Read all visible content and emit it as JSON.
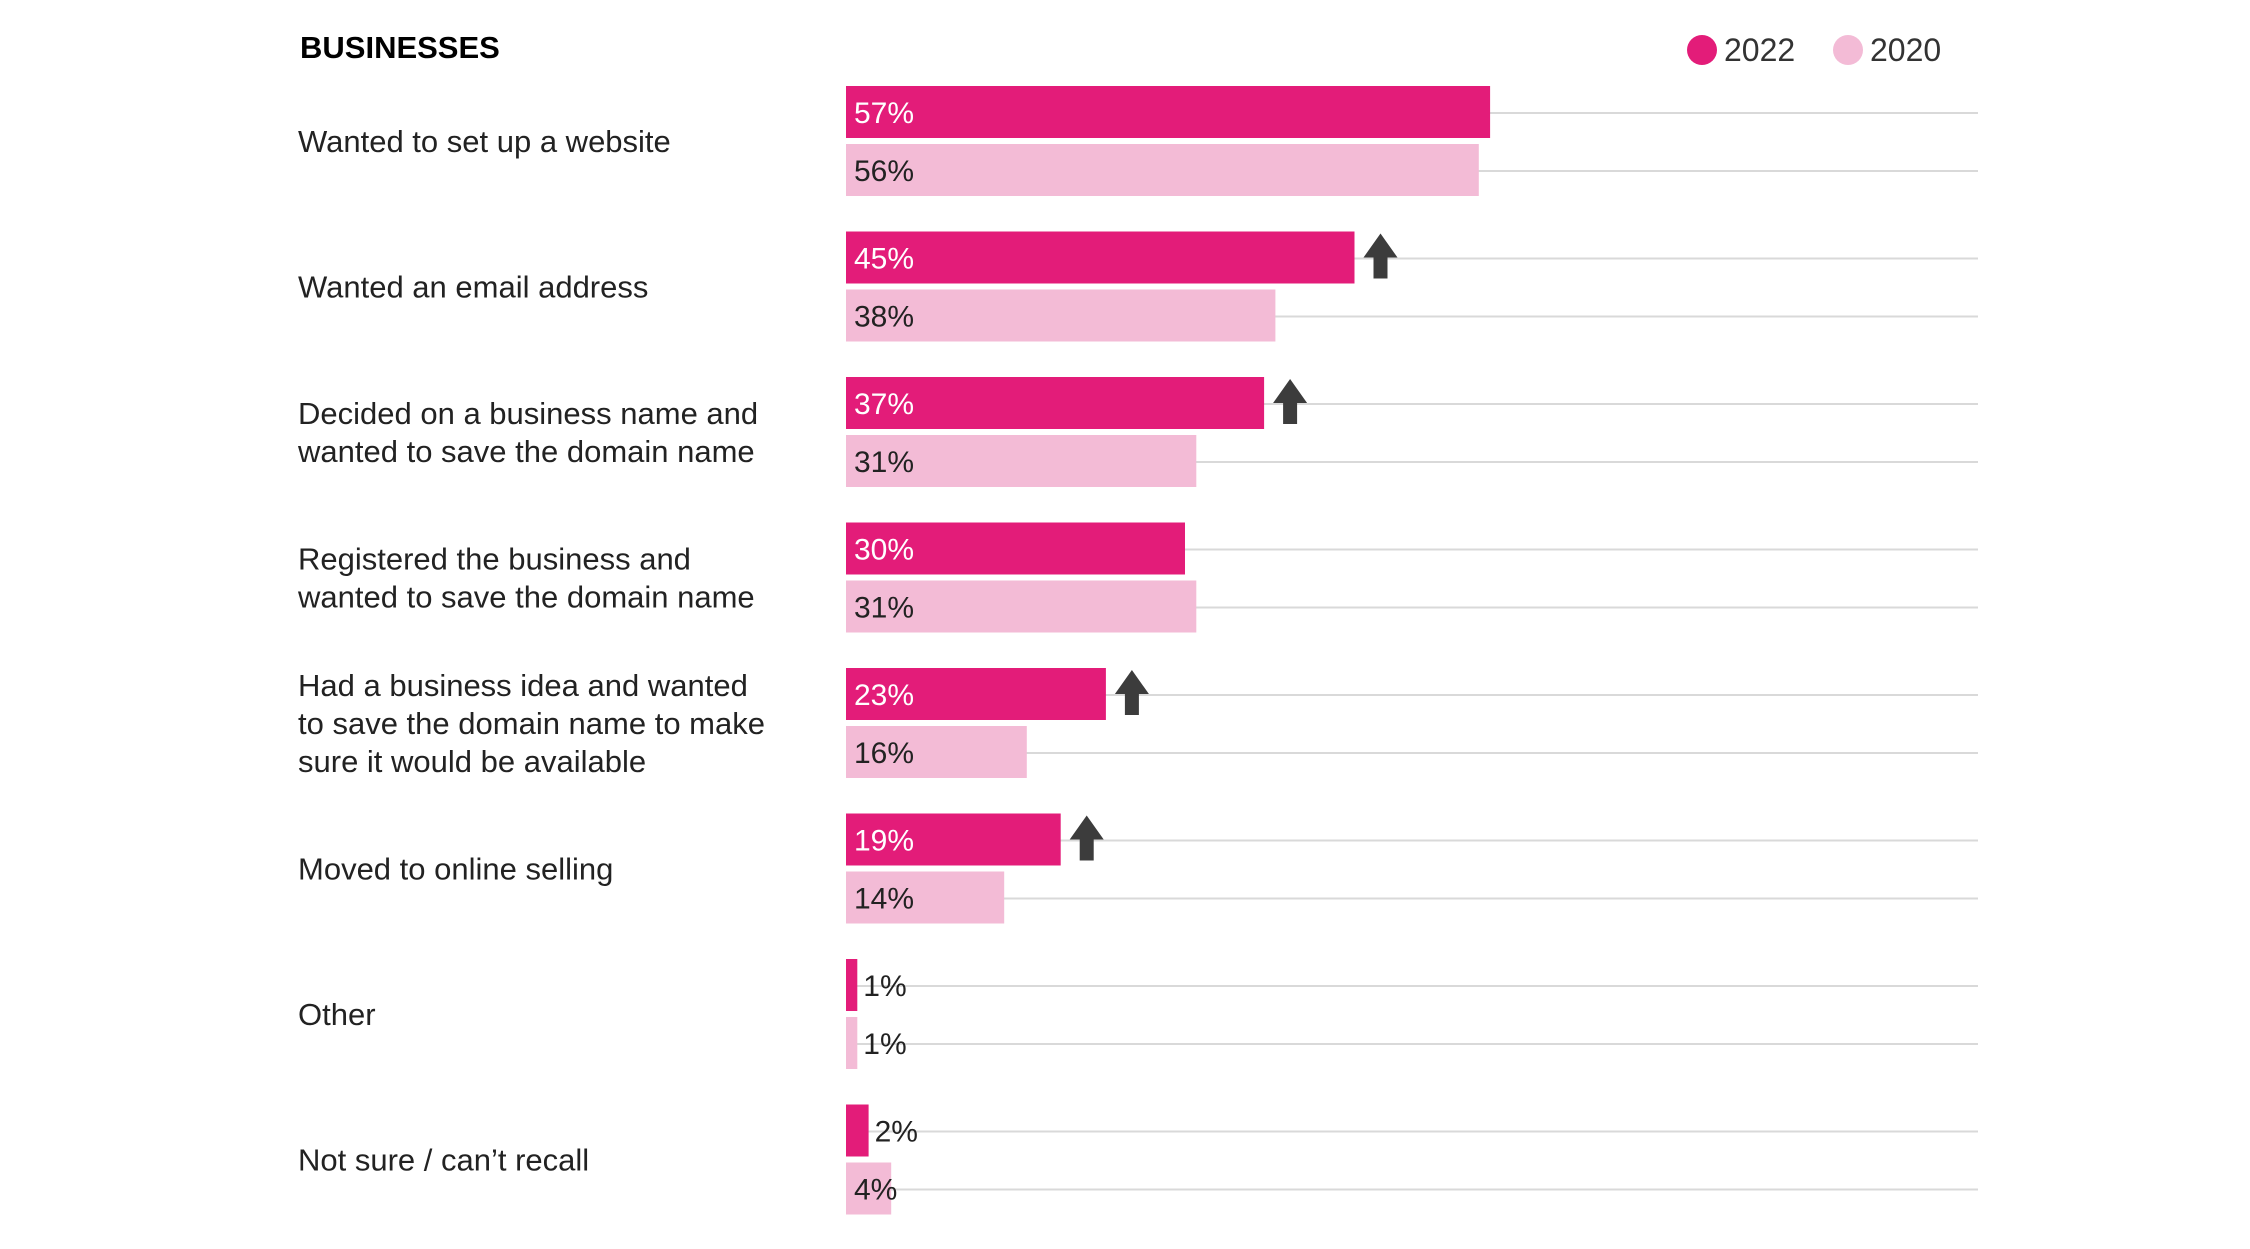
{
  "colors": {
    "series_2022": "#e31c79",
    "series_2020": "#f3bbd6",
    "gridline": "#d9d9d9",
    "arrow": "#3c3c3c",
    "label_on_dark": "#ffffff",
    "label_on_light": "#222222"
  },
  "icons": {
    "increase": "up-arrow-icon"
  },
  "chart_data": {
    "type": "bar",
    "orientation": "horizontal",
    "title": "BUSINESSES",
    "legend_position": "top-right",
    "grid": true,
    "xlim": [
      0,
      100
    ],
    "categories": [
      [
        "Wanted to set up a website"
      ],
      [
        "Wanted an email address"
      ],
      [
        "Decided on a business name and",
        "wanted to save the domain name"
      ],
      [
        "Registered the business and",
        "wanted to save the domain name"
      ],
      [
        "Had a business idea and wanted",
        "to save the domain name to make",
        "sure it would be available"
      ],
      [
        "Moved to online selling"
      ],
      [
        "Other"
      ],
      [
        "Not sure / can’t recall"
      ]
    ],
    "series": [
      {
        "name": "2022",
        "values": [
          57,
          45,
          37,
          30,
          23,
          19,
          1,
          2
        ],
        "labels": [
          "57%",
          "45%",
          "37%",
          "30%",
          "23%",
          "19%",
          "1%",
          "2%"
        ]
      },
      {
        "name": "2020",
        "values": [
          56,
          38,
          31,
          31,
          16,
          14,
          1,
          4
        ],
        "labels": [
          "56%",
          "38%",
          "31%",
          "31%",
          "16%",
          "14%",
          "1%",
          "4%"
        ]
      }
    ],
    "significant_increase": [
      false,
      true,
      true,
      false,
      true,
      true,
      false,
      false
    ]
  }
}
